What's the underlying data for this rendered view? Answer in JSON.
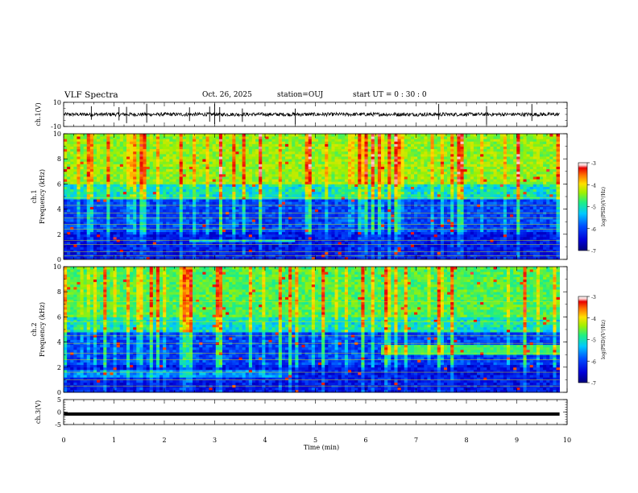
{
  "header": {
    "title": "VLF Spectra",
    "date": "Oct. 26, 2025",
    "station": "station=OUJ",
    "start_time": "start  UT =   0 : 30 : 0"
  },
  "chart_data": [
    {
      "type": "line",
      "name": "ch1-waveform",
      "ylabel": "ch.1(V)",
      "ylim": [
        -10,
        10
      ],
      "yticks": [
        "10",
        "-10"
      ],
      "xlim": [
        0,
        10
      ],
      "baseline": 0,
      "noise_amplitude": 1.5,
      "spikes_x": [
        0.55,
        1.1,
        1.25,
        1.65,
        2.5,
        2.9,
        3.0,
        3.1,
        3.55,
        4.6,
        7.45,
        8.4,
        9.3
      ]
    },
    {
      "type": "heatmap",
      "name": "ch1-spectrogram",
      "ylabel": "ch.1",
      "ylabel2": "Frequency (kHz)",
      "ylim": [
        0,
        10
      ],
      "yticks": [
        "0",
        "2",
        "4",
        "6",
        "8",
        "10"
      ],
      "xlim": [
        0,
        9.85
      ],
      "colorbar": {
        "label": "log(PSD)(V²/Hz)",
        "range": [
          -7,
          -3
        ],
        "ticks": [
          "-3",
          "-4",
          "-5",
          "-6",
          "-7"
        ]
      }
    },
    {
      "type": "heatmap",
      "name": "ch2-spectrogram",
      "ylabel": "ch.2",
      "ylabel2": "Frequency (kHz)",
      "ylim": [
        0,
        10
      ],
      "yticks": [
        "0",
        "2",
        "4",
        "6",
        "8",
        "10"
      ],
      "xlim": [
        0,
        9.85
      ],
      "colorbar": {
        "label": "log(PSD)(V²/Hz)",
        "range": [
          -7,
          -3
        ],
        "ticks": [
          "-3",
          "-4",
          "-5",
          "-6",
          "-7"
        ]
      }
    },
    {
      "type": "line",
      "name": "ch3-waveform",
      "ylabel": "ch.3(V)",
      "ylim": [
        -5,
        5
      ],
      "yticks": [
        "5",
        "0",
        "-5"
      ],
      "xlim": [
        0,
        10
      ],
      "value": -0.8
    }
  ],
  "xaxis": {
    "label": "Time (min)",
    "range": [
      0,
      10
    ],
    "ticks": [
      "0",
      "1",
      "2",
      "3",
      "4",
      "5",
      "6",
      "7",
      "8",
      "9",
      "10"
    ]
  },
  "colors": {
    "frame": "#000000",
    "trace": "#000000"
  }
}
